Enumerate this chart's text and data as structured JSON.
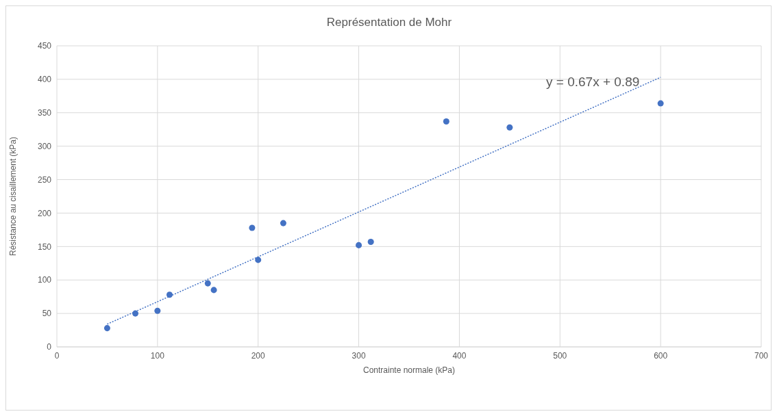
{
  "chart_data": {
    "type": "scatter",
    "title": "Représentation de Mohr",
    "xlabel": "Contrainte normale (kPa)",
    "ylabel": "Résistance au cisaillement (kPa)",
    "series": [
      {
        "color": "#4472c4",
        "marker": "circle",
        "x": [
          50,
          78,
          100,
          112,
          150,
          156,
          194,
          200,
          225,
          300,
          312,
          387,
          450,
          600
        ],
        "values": [
          28,
          50,
          54,
          78,
          95,
          85,
          178,
          130,
          185,
          152,
          157,
          337,
          328,
          364
        ]
      },
      {
        "type": "line",
        "color": "#4472c4",
        "line_style": "dotted",
        "marker": "none",
        "x": [
          50,
          600
        ],
        "values": [
          34,
          403
        ]
      }
    ],
    "xlim": [
      0,
      700
    ],
    "xticks": [
      0,
      100,
      200,
      300,
      400,
      500,
      600,
      700
    ],
    "ylim": [
      0,
      450
    ],
    "yticks": [
      0,
      50,
      100,
      150,
      200,
      250,
      300,
      350,
      400,
      450
    ],
    "grid": true,
    "annotations": [
      "y = 0.67x + 0.89"
    ]
  }
}
